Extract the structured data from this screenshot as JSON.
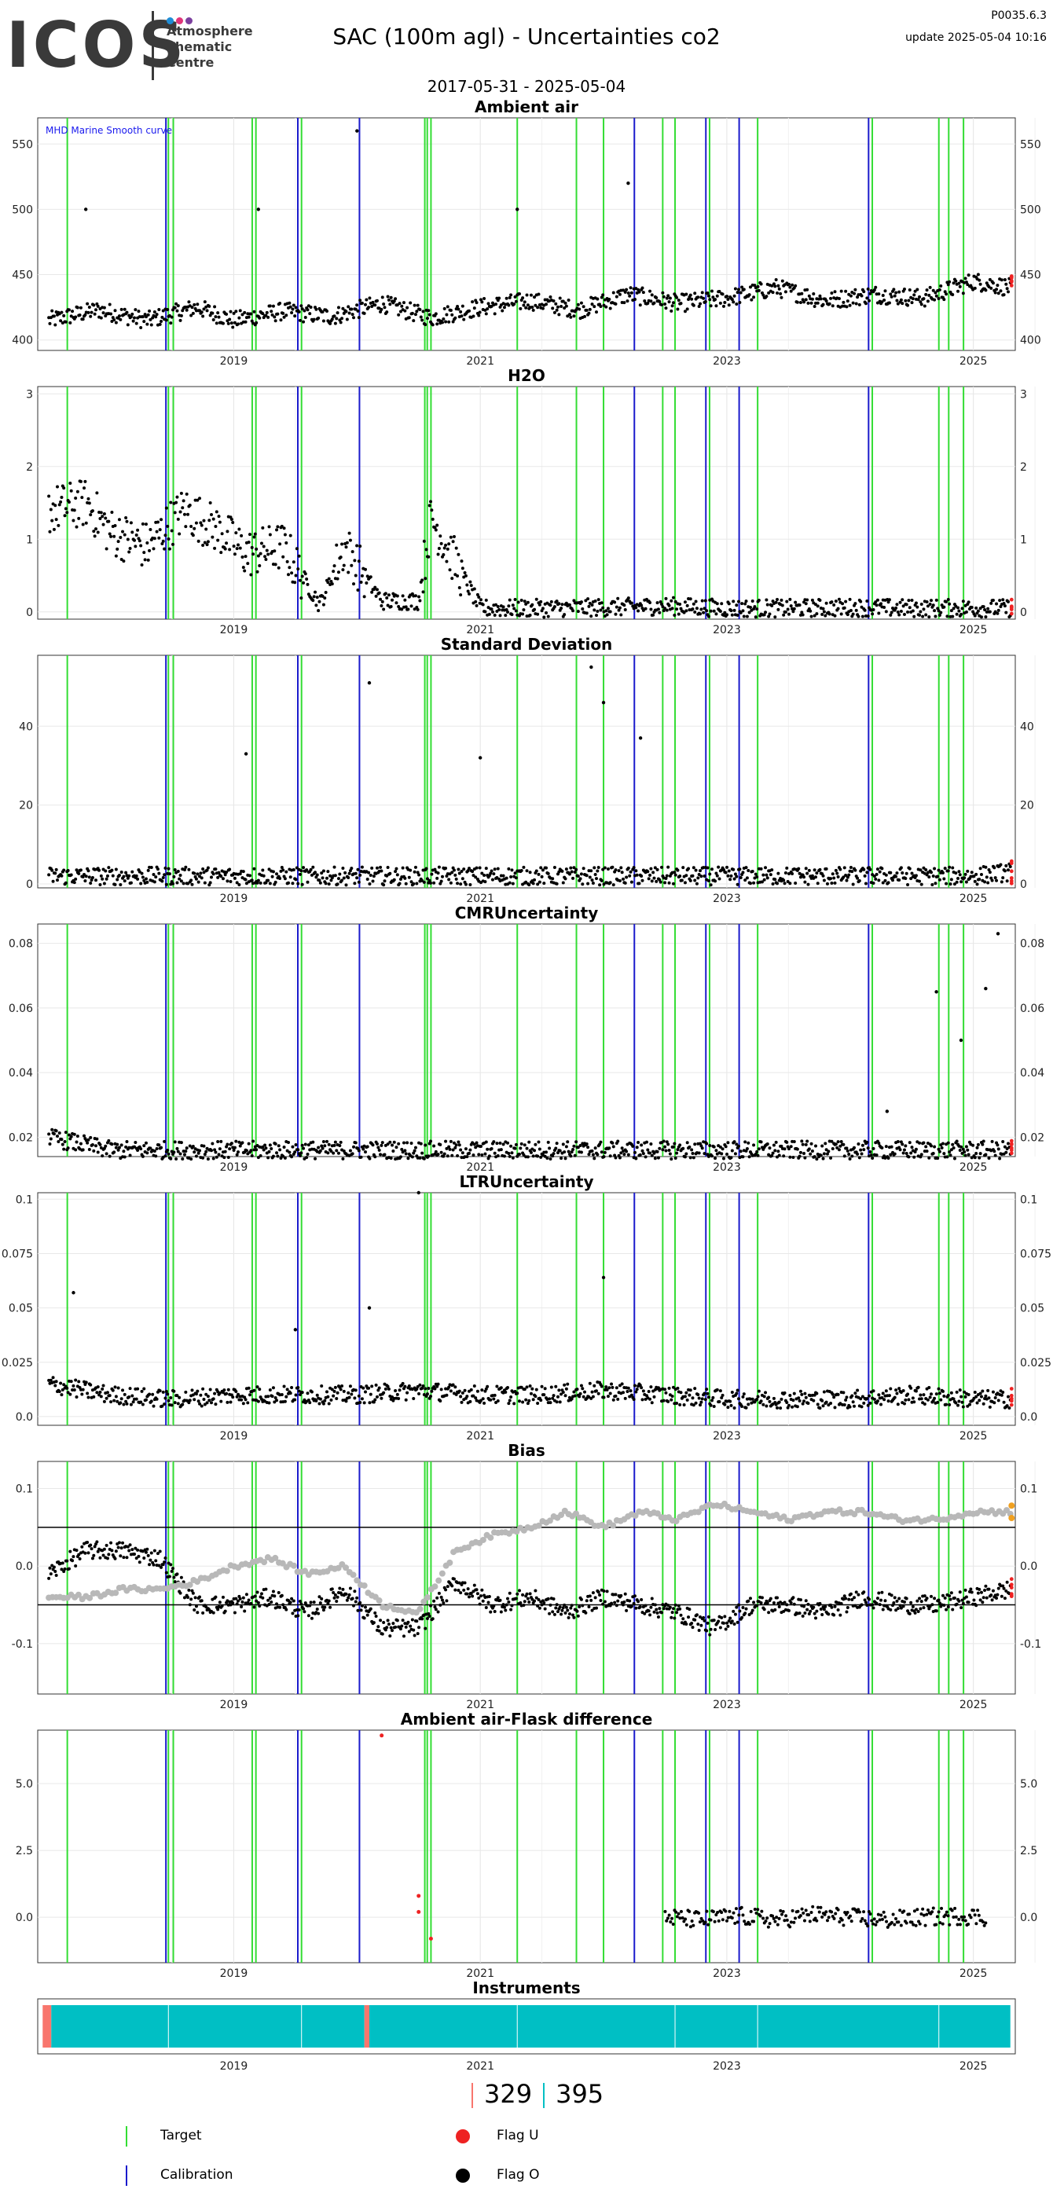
{
  "header": {
    "logo_text": "ICOS",
    "logo_subtitle": [
      "Atmosphere",
      "Thematic",
      "Centre"
    ],
    "title": "SAC  (100m agl) - Uncertainties co2",
    "code": "P0035.6.3",
    "update": "update  2025-05-04 10:16",
    "date_range": "2017-05-31 - 2025-05-04"
  },
  "colors": {
    "target": "#33dd33",
    "calibration": "#1a1acc",
    "flag_u": "#ee2222",
    "flag_o": "#000000",
    "smooth": "#b8b8b8",
    "instrument_main": "#00bfc4",
    "instrument_alt": "#f8766d",
    "orange": "#f0a020"
  },
  "legend": {
    "target": "Target",
    "calibration": "Calibration",
    "flag_u": "Flag U",
    "flag_o": "Flag O"
  },
  "instrument_counts": {
    "a": "329",
    "b": "395"
  },
  "chart_data": [
    {
      "type": "scatter",
      "title": "Ambient air",
      "annotation": "MHD Marine Smooth curve",
      "xlim": [
        2017.41,
        2025.34
      ],
      "ylim": [
        392,
        570
      ],
      "yticks": [
        400,
        450,
        500,
        550
      ],
      "xticks": [
        2019,
        2021,
        2023,
        2025
      ],
      "series": [
        {
          "x": [
            2017.5,
            2017.9,
            2018.3,
            2018.7,
            2019.0,
            2019.4,
            2019.8,
            2020.2,
            2020.6,
            2021.0,
            2021.4,
            2021.8,
            2022.2,
            2022.6,
            2023.0,
            2023.4,
            2023.8,
            2024.2,
            2024.6,
            2025.0,
            2025.3
          ],
          "y": [
            415,
            423,
            415,
            425,
            415,
            422,
            418,
            428,
            417,
            425,
            430,
            423,
            435,
            428,
            432,
            440,
            430,
            435,
            432,
            445,
            440
          ]
        }
      ],
      "spikes": [
        [
          2017.8,
          500
        ],
        [
          2019.2,
          500
        ],
        [
          2020.0,
          560
        ],
        [
          2021.3,
          500
        ],
        [
          2022.2,
          520
        ]
      ]
    },
    {
      "type": "scatter",
      "title": "H2O",
      "xlim": [
        2017.41,
        2025.34
      ],
      "ylim": [
        -0.1,
        3.1
      ],
      "yticks": [
        0,
        1,
        2,
        3
      ],
      "xticks": [
        2019,
        2021,
        2023,
        2025
      ],
      "series": [
        {
          "x": [
            2017.5,
            2017.8,
            2018.0,
            2018.3,
            2018.6,
            2018.9,
            2019.1,
            2019.4,
            2019.7,
            2019.9,
            2020.2,
            2020.5,
            2020.6,
            2021.0,
            2021.5,
            2022.0,
            2022.5,
            2023.0,
            2023.5,
            2024.0,
            2024.5,
            2025.0,
            2025.3
          ],
          "y": [
            1.4,
            1.5,
            1.1,
            0.9,
            1.4,
            1.1,
            0.8,
            0.9,
            0.1,
            0.9,
            0.15,
            0.15,
            1.3,
            0.05,
            0.05,
            0.06,
            0.08,
            0.05,
            0.05,
            0.06,
            0.05,
            0.05,
            0.05
          ]
        }
      ]
    },
    {
      "type": "scatter",
      "title": "Standard Deviation",
      "xlim": [
        2017.41,
        2025.34
      ],
      "ylim": [
        -1,
        58
      ],
      "yticks": [
        0,
        20,
        40
      ],
      "xticks": [
        2019,
        2021,
        2023,
        2025
      ],
      "series": [
        {
          "x": [
            2017.5,
            2018.0,
            2018.5,
            2019.0,
            2019.5,
            2020.0,
            2020.5,
            2021.0,
            2021.5,
            2022.0,
            2022.5,
            2023.0,
            2023.5,
            2024.0,
            2024.5,
            2025.0,
            2025.3
          ],
          "y": [
            2,
            2,
            2,
            2,
            2,
            2,
            2,
            2,
            2,
            2,
            2,
            2,
            2,
            2,
            2,
            2,
            3
          ]
        }
      ],
      "spikes": [
        [
          2020.1,
          51
        ],
        [
          2021.9,
          55
        ],
        [
          2022.0,
          46
        ],
        [
          2019.1,
          33
        ],
        [
          2021.0,
          32
        ],
        [
          2022.3,
          37
        ]
      ]
    },
    {
      "type": "scatter",
      "title": "CMRUncertainty",
      "xlim": [
        2017.41,
        2025.34
      ],
      "ylim": [
        0.014,
        0.086
      ],
      "yticks": [
        0.02,
        0.04,
        0.06,
        0.08
      ],
      "xticks": [
        2019,
        2021,
        2023,
        2025
      ],
      "series": [
        {
          "x": [
            2017.5,
            2018.0,
            2018.5,
            2019.0,
            2019.5,
            2020.0,
            2020.5,
            2021.0,
            2021.5,
            2022.0,
            2022.5,
            2023.0,
            2023.5,
            2024.0,
            2024.5,
            2025.0,
            2025.3
          ],
          "y": [
            0.02,
            0.016,
            0.016,
            0.016,
            0.016,
            0.016,
            0.016,
            0.016,
            0.016,
            0.016,
            0.016,
            0.016,
            0.016,
            0.016,
            0.016,
            0.016,
            0.016
          ]
        }
      ],
      "spikes": [
        [
          2024.7,
          0.065
        ],
        [
          2025.2,
          0.083
        ],
        [
          2025.1,
          0.066
        ],
        [
          2024.9,
          0.05
        ],
        [
          2024.3,
          0.028
        ]
      ]
    },
    {
      "type": "scatter",
      "title": "LTRUncertainty",
      "xlim": [
        2017.41,
        2025.34
      ],
      "ylim": [
        -0.004,
        0.103
      ],
      "yticks": [
        0.0,
        0.025,
        0.05,
        0.075,
        0.1
      ],
      "xticks": [
        2019,
        2021,
        2023,
        2025
      ],
      "series": [
        {
          "x": [
            2017.5,
            2018.0,
            2018.5,
            2019.0,
            2019.5,
            2020.0,
            2020.5,
            2021.0,
            2021.5,
            2022.0,
            2022.5,
            2023.0,
            2023.5,
            2024.0,
            2024.5,
            2025.0,
            2025.3
          ],
          "y": [
            0.015,
            0.01,
            0.008,
            0.01,
            0.01,
            0.01,
            0.012,
            0.01,
            0.01,
            0.012,
            0.01,
            0.008,
            0.008,
            0.008,
            0.01,
            0.008,
            0.008
          ]
        }
      ],
      "spikes": [
        [
          2020.5,
          0.103
        ],
        [
          2017.7,
          0.057
        ],
        [
          2022.0,
          0.064
        ],
        [
          2020.1,
          0.05
        ],
        [
          2019.5,
          0.04
        ]
      ]
    },
    {
      "type": "scatter",
      "title": "Bias",
      "xlim": [
        2017.41,
        2025.34
      ],
      "ylim": [
        -0.165,
        0.135
      ],
      "yticks": [
        -0.1,
        0.0,
        0.1
      ],
      "xticks": [
        2019,
        2021,
        2023,
        2025
      ],
      "hlines": [
        0.05,
        -0.05
      ],
      "series": [
        {
          "x": [
            2017.5,
            2017.8,
            2018.1,
            2018.4,
            2018.7,
            2019.0,
            2019.3,
            2019.6,
            2019.9,
            2020.2,
            2020.5,
            2020.8,
            2021.1,
            2021.4,
            2021.7,
            2022.0,
            2022.3,
            2022.6,
            2022.9,
            2023.2,
            2023.5,
            2023.8,
            2024.1,
            2024.4,
            2024.7,
            2025.0,
            2025.3
          ],
          "y": [
            -0.01,
            0.02,
            0.02,
            0.01,
            -0.05,
            -0.05,
            -0.04,
            -0.06,
            -0.03,
            -0.08,
            -0.08,
            -0.02,
            -0.05,
            -0.04,
            -0.06,
            -0.04,
            -0.05,
            -0.06,
            -0.08,
            -0.05,
            -0.05,
            -0.06,
            -0.04,
            -0.05,
            -0.05,
            -0.04,
            -0.03
          ]
        },
        {
          "x": [
            2017.5,
            2017.8,
            2018.1,
            2018.4,
            2018.7,
            2019.0,
            2019.3,
            2019.6,
            2019.9,
            2020.2,
            2020.5,
            2020.8,
            2021.1,
            2021.4,
            2021.7,
            2022.0,
            2022.3,
            2022.6,
            2022.9,
            2023.2,
            2023.5,
            2023.8,
            2024.1,
            2024.4,
            2024.7,
            2025.0,
            2025.3
          ],
          "y": [
            -0.04,
            -0.04,
            -0.03,
            -0.03,
            -0.02,
            0.0,
            0.01,
            -0.01,
            0.0,
            -0.05,
            -0.06,
            0.02,
            0.04,
            0.05,
            0.07,
            0.05,
            0.07,
            0.06,
            0.08,
            0.07,
            0.06,
            0.07,
            0.07,
            0.06,
            0.06,
            0.07,
            0.07
          ]
        }
      ]
    },
    {
      "type": "scatter",
      "title": "Ambient air-Flask difference",
      "xlim": [
        2017.41,
        2025.34
      ],
      "ylim": [
        -1.7,
        7.0
      ],
      "yticks": [
        0.0,
        2.5,
        5.0
      ],
      "xticks": [
        2019,
        2021,
        2023,
        2025
      ],
      "series": [
        {
          "x": [
            2022.5,
            2022.8,
            2023.1,
            2023.4,
            2023.7,
            2024.0,
            2024.3,
            2024.6,
            2024.9,
            2025.1
          ],
          "y": [
            0.0,
            -0.1,
            0.05,
            -0.1,
            0.1,
            0.0,
            -0.1,
            0.0,
            0.05,
            0.0
          ]
        }
      ],
      "red_points": [
        [
          2020.2,
          6.8
        ],
        [
          2020.5,
          0.8
        ],
        [
          2020.5,
          0.2
        ],
        [
          2020.6,
          -0.8
        ]
      ]
    },
    {
      "type": "bar",
      "title": "Instruments",
      "xlim": [
        2017.41,
        2025.34
      ],
      "xticks": [
        2019,
        2021,
        2023,
        2025
      ]
    }
  ]
}
